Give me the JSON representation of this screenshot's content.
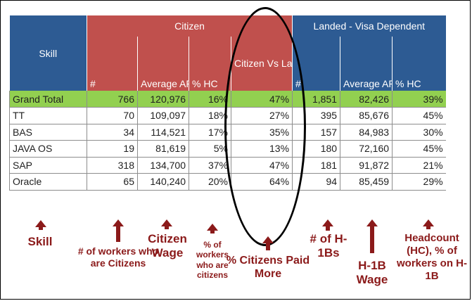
{
  "groups": {
    "skill": "Skill",
    "citizen": "Citizen",
    "landed": "Landed - Visa Dependent"
  },
  "columns": {
    "c_count": "#",
    "c_arc": "Average ARC",
    "c_hc": "% HC",
    "vs": "Citizen Vs Landed ARC",
    "l_count": "#",
    "l_arc": "Average ARC",
    "l_hc": "% HC"
  },
  "rows": [
    {
      "skill": "Grand Total",
      "c_count": "766",
      "c_arc": "120,976",
      "c_hc": "16%",
      "vs": "47%",
      "l_count": "1,851",
      "l_arc": "82,426",
      "l_hc": "39%"
    },
    {
      "skill": "TT",
      "c_count": "70",
      "c_arc": "109,097",
      "c_hc": "18%",
      "vs": "27%",
      "l_count": "395",
      "l_arc": "85,676",
      "l_hc": "45%"
    },
    {
      "skill": "BAS",
      "c_count": "34",
      "c_arc": "114,521",
      "c_hc": "17%",
      "vs": "35%",
      "l_count": "157",
      "l_arc": "84,983",
      "l_hc": "30%"
    },
    {
      "skill": "JAVA OS",
      "c_count": "19",
      "c_arc": "81,619",
      "c_hc": "5%",
      "vs": "13%",
      "l_count": "180",
      "l_arc": "72,160",
      "l_hc": "45%"
    },
    {
      "skill": "SAP",
      "c_count": "318",
      "c_arc": "134,700",
      "c_hc": "37%",
      "vs": "47%",
      "l_count": "181",
      "l_arc": "91,872",
      "l_hc": "21%"
    },
    {
      "skill": "Oracle",
      "c_count": "65",
      "c_arc": "140,240",
      "c_hc": "20%",
      "vs": "64%",
      "l_count": "94",
      "l_arc": "85,459",
      "l_hc": "29%"
    }
  ],
  "annotations": {
    "skill": "Skill",
    "citizens_count": "# of workers who are Citizens",
    "citizen_wage": "Citizen Wage",
    "pct_citizens": "% of workers who are citizens",
    "pct_paid_more": "% Citizens Paid More",
    "h1b_count": "# of H-1Bs",
    "h1b_wage": "H-1B Wage",
    "headcount": "Headcount (HC), % of workers on H-1B"
  },
  "colors": {
    "header_blue": "#2d5b93",
    "header_red": "#c0504d",
    "total_green": "#92d050",
    "annotation": "#8b1a1a"
  }
}
